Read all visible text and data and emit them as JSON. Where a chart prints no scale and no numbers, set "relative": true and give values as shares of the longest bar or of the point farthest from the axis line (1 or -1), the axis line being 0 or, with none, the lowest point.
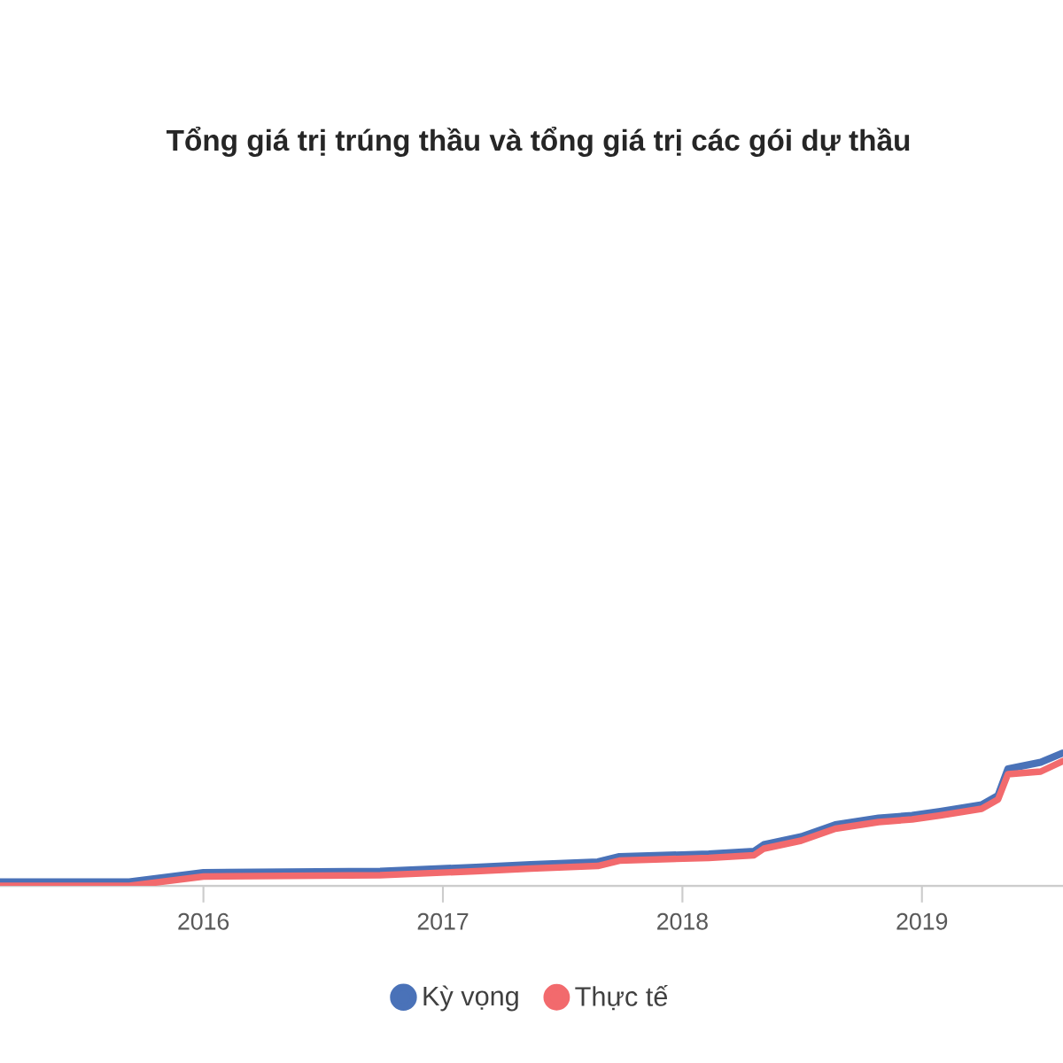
{
  "chart_data": {
    "type": "line",
    "title": "Tổng giá trị trúng thầu và tổng giá trị các gói dự thầu",
    "relative": true,
    "x": [
      "2015-02-25",
      "2015-09-10",
      "2016-01-01",
      "2016-09-27",
      "2017-02-20",
      "2017-05-15",
      "2017-08-25",
      "2017-09-27",
      "2018-02-10",
      "2018-04-20",
      "2018-05-05",
      "2018-07-01",
      "2018-08-22",
      "2018-10-27",
      "2018-12-17",
      "2019-01-29",
      "2019-04-02",
      "2019-04-27",
      "2019-05-12",
      "2019-07-01",
      "2019-08-04"
    ],
    "series": [
      {
        "name": "Kỳ vọng",
        "color": "#4a72b8",
        "values": [
          0.03,
          0.03,
          0.1,
          0.11,
          0.14,
          0.16,
          0.18,
          0.22,
          0.24,
          0.26,
          0.31,
          0.37,
          0.46,
          0.51,
          0.53,
          0.56,
          0.61,
          0.68,
          0.88,
          0.93,
          1
        ]
      },
      {
        "name": "Thực tế",
        "color": "#f26a6d",
        "values": [
          0,
          0,
          0.07,
          0.08,
          0.11,
          0.13,
          0.15,
          0.19,
          0.21,
          0.23,
          0.28,
          0.34,
          0.43,
          0.48,
          0.5,
          0.53,
          0.58,
          0.65,
          0.84,
          0.86,
          0.94
        ]
      }
    ],
    "xlim": [
      "2015-02-25",
      "2019-08-04"
    ],
    "xticks": [
      "2016",
      "2017",
      "2018",
      "2019"
    ],
    "legend": "bottom",
    "line_style": "solid"
  }
}
